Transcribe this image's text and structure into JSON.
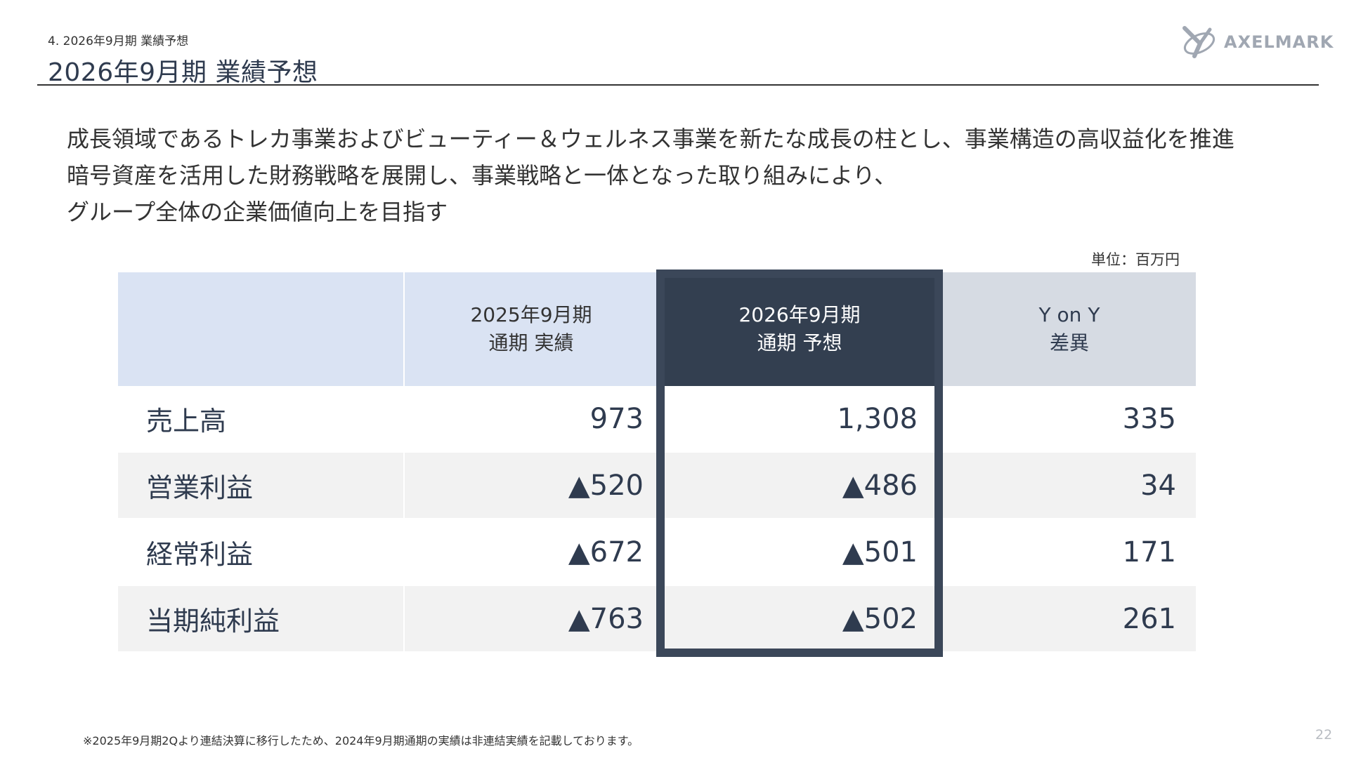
{
  "header": {
    "breadcrumb": "4.  2026年9月期 業績予想",
    "title": "2026年9月期 業績予想",
    "logo_text": "AXELMARK"
  },
  "lead_lines": [
    "成長領域であるトレカ事業およびビューティー＆ウェルネス事業を新たな成長の柱とし、事業構造の高収益化を推進",
    "暗号資産を活用した財務戦略を展開し、事業戦略と一体となった取り組みにより、",
    "グループ全体の企業価値向上を目指す"
  ],
  "unit": "単位：百万円",
  "table": {
    "columns": [
      {
        "line1": "",
        "line2": ""
      },
      {
        "line1": "2025年9月期",
        "line2": "通期 実績"
      },
      {
        "line1": "2026年9月期",
        "line2": "通期 予想"
      },
      {
        "line1": "Y on Y",
        "line2": "差異"
      }
    ],
    "rows": [
      {
        "label": "売上高",
        "actual": "973",
        "forecast": "1,308",
        "diff": "335"
      },
      {
        "label": "営業利益",
        "actual": "▲520",
        "forecast": "▲486",
        "diff": "34"
      },
      {
        "label": "経常利益",
        "actual": "▲672",
        "forecast": "▲501",
        "diff": "171"
      },
      {
        "label": "当期純利益",
        "actual": "▲763",
        "forecast": "▲502",
        "diff": "261"
      }
    ]
  },
  "footnote": "※2025年9月期2Qより連結決算に移行したため、2024年9月期通期の実績は非連結実績を記載しております。",
  "page_number": "22",
  "colors": {
    "header_light": "#dae3f3",
    "header_dark": "#333f50",
    "header_gray": "#d6dbe3",
    "row_stripe": "#f2f2f2",
    "highlight_border": "#3b4759",
    "text_dark": "#2f3b4f"
  }
}
